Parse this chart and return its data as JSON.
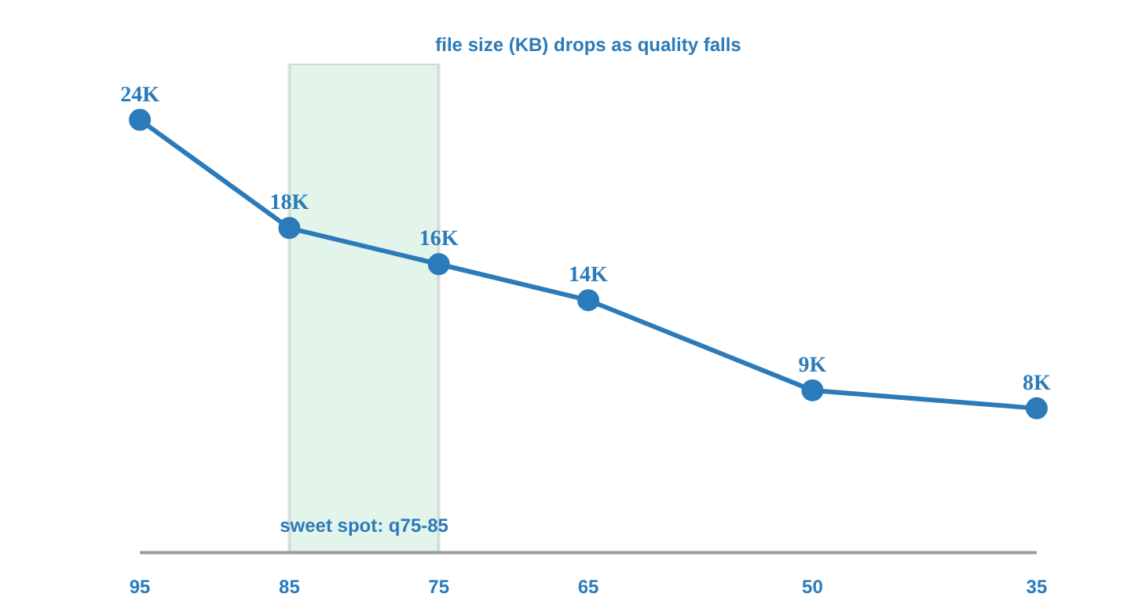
{
  "chart_data": {
    "type": "line",
    "title": "file size (KB) drops as quality falls",
    "x": [
      95,
      85,
      75,
      65,
      50,
      35
    ],
    "series": [
      {
        "color": "#2b7bba",
        "values": [
          24,
          18,
          16,
          14,
          9,
          8
        ],
        "value_labels": [
          "24K",
          "18K",
          "16K",
          "14K",
          "9K",
          "8K"
        ]
      }
    ],
    "xlim": [
      95,
      35
    ],
    "xticks": [
      95,
      85,
      75,
      65,
      50,
      35
    ],
    "tick_labels": "x",
    "bands": [
      {
        "axis": "x",
        "from": 85,
        "to": 75,
        "label": "sweet spot: q75-85",
        "color": "#e3f4ea"
      }
    ],
    "marker": "circle",
    "grid": false
  }
}
